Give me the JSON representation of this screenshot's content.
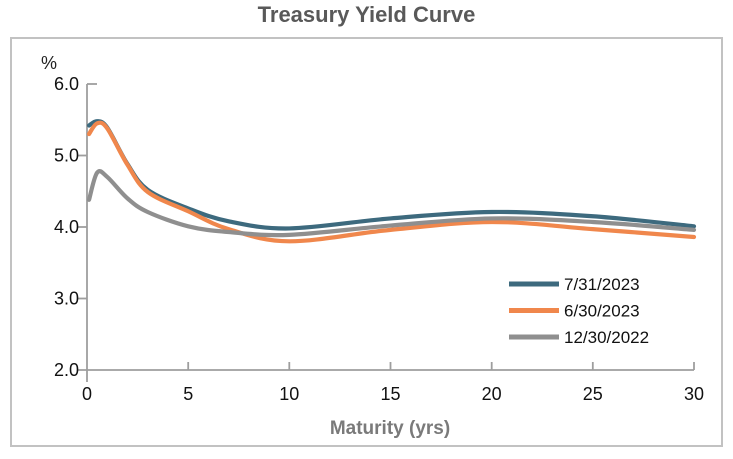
{
  "title": "Treasury Yield Curve",
  "axes": {
    "y_unit": "%",
    "x_title": "Maturity (yrs)",
    "y_tick_labels": [
      "6.0",
      "5.0",
      "4.0",
      "3.0",
      "2.0"
    ],
    "x_tick_labels": [
      "0",
      "5",
      "10",
      "15",
      "20",
      "25",
      "30"
    ]
  },
  "legend": {
    "items": [
      {
        "label": "7/31/2023"
      },
      {
        "label": "6/30/2023"
      },
      {
        "label": "12/30/2022"
      }
    ]
  },
  "chart_data": {
    "type": "line",
    "title": "Treasury Yield Curve",
    "xlabel": "Maturity (yrs)",
    "ylabel": "%",
    "xlim": [
      0,
      30
    ],
    "ylim": [
      2.0,
      6.0
    ],
    "x_ticks": [
      0,
      5,
      10,
      15,
      20,
      25,
      30
    ],
    "y_ticks": [
      2.0,
      3.0,
      4.0,
      5.0,
      6.0
    ],
    "grid": false,
    "legend_position": "inside-lower-right",
    "x": [
      0.1,
      0.5,
      1,
      2,
      3,
      5,
      7,
      10,
      15,
      20,
      25,
      30
    ],
    "series": [
      {
        "name": "7/31/2023",
        "color": "#3d6a7e",
        "values": [
          5.42,
          5.48,
          5.39,
          4.88,
          4.52,
          4.26,
          4.08,
          3.98,
          4.12,
          4.21,
          4.15,
          4.01
        ]
      },
      {
        "name": "6/30/2023",
        "color": "#f0874c",
        "values": [
          5.3,
          5.45,
          5.38,
          4.87,
          4.49,
          4.22,
          3.97,
          3.8,
          3.96,
          4.07,
          3.97,
          3.86
        ]
      },
      {
        "name": "12/30/2022",
        "color": "#8f8f8f",
        "values": [
          4.38,
          4.76,
          4.7,
          4.4,
          4.21,
          4.01,
          3.93,
          3.89,
          4.02,
          4.12,
          4.07,
          3.96
        ]
      }
    ]
  }
}
